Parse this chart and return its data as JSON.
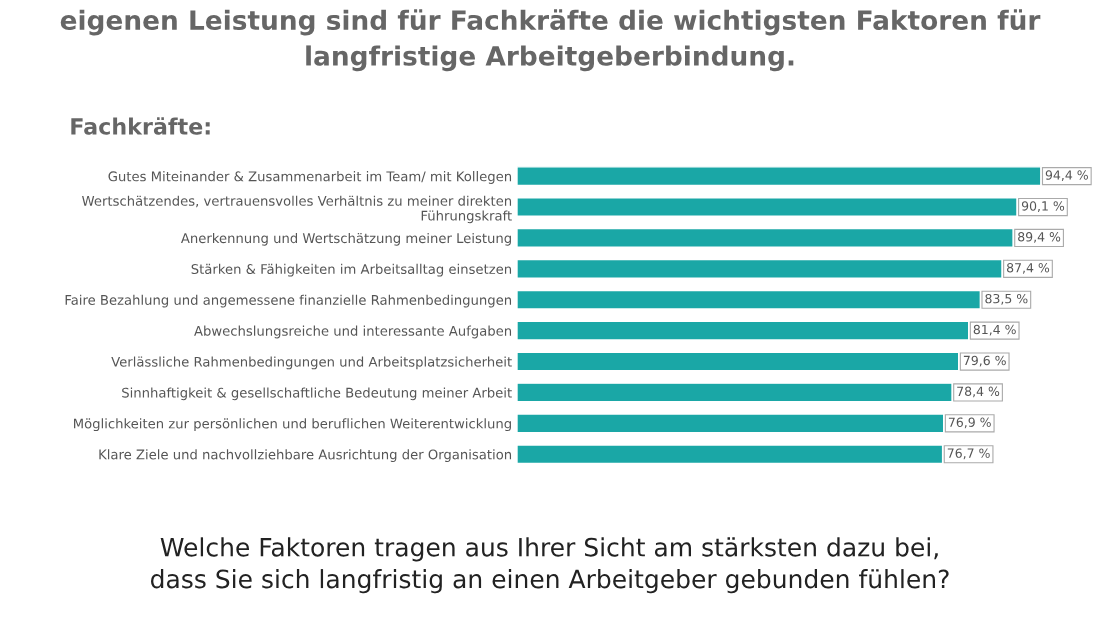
{
  "chart_data": {
    "type": "bar",
    "orientation": "horizontal",
    "title": "eigenen Leistung sind für Fachkräfte die wichtigsten Faktoren für\nlangfristige Arbeitgeberbindung.",
    "subtitle": "Fachkräfte:",
    "categories": [
      "Gutes Miteinander & Zusammenarbeit im Team/ mit Kollegen",
      "Wertschätzendes, vertrauensvolles Verhältnis zu meiner direkten Führungskraft",
      "Anerkennung und Wertschätzung meiner Leistung",
      "Stärken & Fähigkeiten im Arbeitsalltag einsetzen",
      "Faire Bezahlung und angemessene finanzielle Rahmenbedingungen",
      "Abwechslungsreiche und interessante Aufgaben",
      "Verlässliche Rahmenbedingungen und Arbeitsplatzsicherheit",
      "Sinnhaftigkeit & gesellschaftliche Bedeutung meiner Arbeit",
      "Möglichkeiten zur persönlichen und beruflichen Weiterentwicklung",
      "Klare Ziele und nachvollziehbare Ausrichtung der Organisation"
    ],
    "values": [
      94.4,
      90.1,
      89.4,
      87.4,
      83.5,
      81.4,
      79.6,
      78.4,
      76.9,
      76.7
    ],
    "value_labels": [
      "94,4 %",
      "90,1 %",
      "89,4 %",
      "87,4 %",
      "83,5 %",
      "81,4 %",
      "79,6 %",
      "78,4 %",
      "76,9 %",
      "76,7 %"
    ],
    "color": "#1aa7a6",
    "tick_labels": "y",
    "annotations": [
      "Welche Faktoren tragen aus Ihrer Sicht am stärksten dazu bei,\ndass Sie sich langfristig an einen Arbeitgeber gebunden fühlen?"
    ]
  }
}
